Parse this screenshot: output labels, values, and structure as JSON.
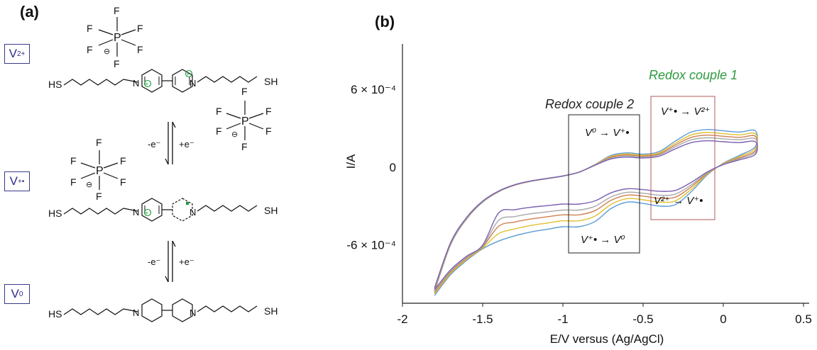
{
  "panel_a": {
    "letter": "(a)",
    "states": [
      {
        "base": "V",
        "charge": "2+"
      },
      {
        "base": "V",
        "charge": "+•"
      },
      {
        "base": "V",
        "charge": "0"
      }
    ],
    "reduction_label": "-e⁻",
    "oxidation_label": "+e⁻",
    "thiol": "HS",
    "thiol_right": "SH",
    "pf6": {
      "P": "P",
      "F": "F",
      "minus": "⊖"
    }
  },
  "panel_b": {
    "letter": "(b)",
    "redox_couple_1": "Redox couple 1",
    "redox_couple_2": "Redox couple 2",
    "annotations": {
      "v0_to_vplus": "V⁰ → V⁺•",
      "vplus_to_v2": "V⁺• → V²⁺",
      "v2_to_vplus": "V²⁺ → V⁺•",
      "vplus_to_v0": "V⁺• → V⁰"
    }
  },
  "chart_data": {
    "type": "line",
    "title": "",
    "xlabel": "E/V versus (Ag/AgCl)",
    "ylabel": "I/A",
    "xlim": [
      -2,
      0.5
    ],
    "ylim": [
      -1.05,
      0.95
    ],
    "y_unit_note": "y values in units of 1e-4 A",
    "x_ticks": [
      "-2",
      "-1.5",
      "-1",
      "-0.5",
      "0",
      "0.5"
    ],
    "x_tick_values": [
      -2,
      -1.5,
      -1,
      -0.5,
      0,
      0.5
    ],
    "y_ticks": [
      "6 × 10⁻⁴",
      "0",
      "-6 × 10⁻⁴"
    ],
    "y_tick_values": [
      6,
      0,
      -6
    ],
    "grid": false,
    "legend": "none",
    "series_colors": [
      "#5b9bd5",
      "#e0c030",
      "#d08050",
      "#a8a8a8",
      "#7a60b0"
    ],
    "scans": [
      {
        "anodic_scale": 1.0,
        "cathodic_scale": 1.0
      },
      {
        "anodic_scale": 0.92,
        "cathodic_scale": 0.9
      },
      {
        "anodic_scale": 0.85,
        "cathodic_scale": 0.8
      },
      {
        "anodic_scale": 0.78,
        "cathodic_scale": 0.72
      },
      {
        "anodic_scale": 0.7,
        "cathodic_scale": 0.62
      }
    ],
    "anodic_branch": [
      [
        -1.8,
        -9.6
      ],
      [
        -1.7,
        -6.0
      ],
      [
        -1.6,
        -4.0
      ],
      [
        -1.5,
        -2.7
      ],
      [
        -1.4,
        -1.9
      ],
      [
        -1.3,
        -1.4
      ],
      [
        -1.2,
        -1.1
      ],
      [
        -1.1,
        -0.9
      ],
      [
        -1.0,
        -0.7
      ],
      [
        -0.9,
        -0.4
      ],
      [
        -0.8,
        0.2
      ],
      [
        -0.7,
        0.9
      ],
      [
        -0.6,
        1.1
      ],
      [
        -0.5,
        1.0
      ],
      [
        -0.4,
        1.2
      ],
      [
        -0.3,
        2.0
      ],
      [
        -0.2,
        2.7
      ],
      [
        -0.1,
        2.9
      ],
      [
        0.0,
        2.8
      ],
      [
        0.1,
        2.7
      ],
      [
        0.2,
        2.8
      ]
    ],
    "cathodic_branch": [
      [
        0.2,
        1.6
      ],
      [
        0.1,
        0.9
      ],
      [
        0.0,
        0.3
      ],
      [
        -0.1,
        -0.6
      ],
      [
        -0.2,
        -1.9
      ],
      [
        -0.3,
        -2.9
      ],
      [
        -0.4,
        -3.0
      ],
      [
        -0.5,
        -2.8
      ],
      [
        -0.6,
        -2.7
      ],
      [
        -0.7,
        -3.2
      ],
      [
        -0.8,
        -4.2
      ],
      [
        -0.9,
        -4.6
      ],
      [
        -1.0,
        -4.6
      ],
      [
        -1.1,
        -4.8
      ],
      [
        -1.2,
        -5.0
      ],
      [
        -1.3,
        -5.3
      ],
      [
        -1.4,
        -5.7
      ],
      [
        -1.5,
        -6.3
      ],
      [
        -1.6,
        -7.2
      ],
      [
        -1.7,
        -8.3
      ],
      [
        -1.8,
        -9.9
      ]
    ]
  }
}
